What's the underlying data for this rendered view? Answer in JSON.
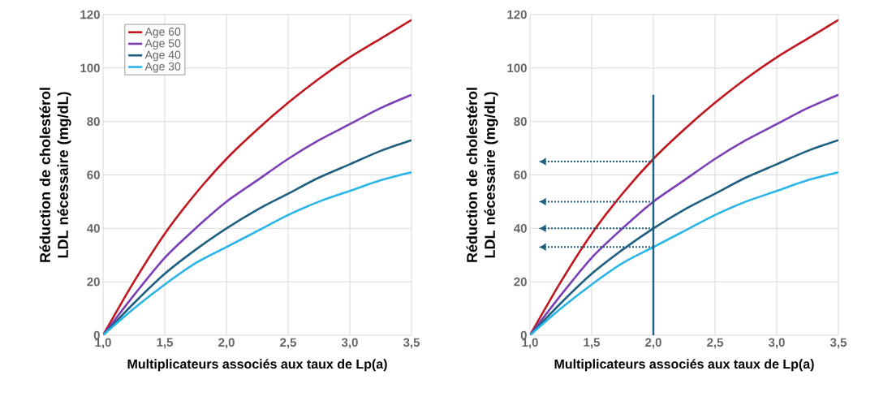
{
  "chart_data": [
    {
      "type": "line",
      "xlabel": "Multiplicateurs associés aux taux de Lp(a)",
      "ylabel": "Réduction de cholestérol LDL nécessaire (mg/dL)",
      "x": [
        1.0,
        1.25,
        1.5,
        1.75,
        2.0,
        2.25,
        2.5,
        2.75,
        3.0,
        3.25,
        3.5
      ],
      "series": [
        {
          "name": "Age 60",
          "color": "#c0161e",
          "values": [
            0,
            20,
            38,
            53,
            66,
            77,
            87,
            96,
            104,
            111,
            118
          ]
        },
        {
          "name": "Age 50",
          "color": "#7b3fb5",
          "values": [
            0,
            15,
            29,
            40,
            50,
            58,
            66,
            73,
            79,
            85,
            90
          ]
        },
        {
          "name": "Age 40",
          "color": "#1f5f7f",
          "values": [
            0,
            12,
            23,
            32,
            40,
            47,
            53,
            59,
            64,
            69,
            73
          ]
        },
        {
          "name": "Age 30",
          "color": "#29b5e8",
          "values": [
            0,
            10,
            19,
            27,
            33,
            39,
            45,
            50,
            54,
            58,
            61
          ]
        }
      ],
      "xlim": [
        1.0,
        3.5
      ],
      "ylim": [
        0,
        120
      ],
      "xticks": [
        {
          "value": 1.0,
          "label": "1,0"
        },
        {
          "value": 1.5,
          "label": "1,5"
        },
        {
          "value": 2.0,
          "label": "2,0"
        },
        {
          "value": 2.5,
          "label": "2,5"
        },
        {
          "value": 3.0,
          "label": "3,0"
        },
        {
          "value": 3.5,
          "label": "3,5"
        }
      ],
      "yticks": [
        0,
        20,
        40,
        60,
        80,
        100,
        120
      ],
      "grid": true,
      "legend": "top left",
      "line_style": "solid"
    },
    {
      "type": "line",
      "xlabel": "Multiplicateurs associés aux taux de Lp(a)",
      "ylabel": "Réduction de cholestérol LDL nécessaire (mg/dL)",
      "x": [
        1.0,
        1.25,
        1.5,
        1.75,
        2.0,
        2.25,
        2.5,
        2.75,
        3.0,
        3.25,
        3.5
      ],
      "series": [
        {
          "color": "#c0161e",
          "values": [
            0,
            20,
            38,
            53,
            66,
            77,
            87,
            96,
            104,
            111,
            118
          ]
        },
        {
          "color": "#7b3fb5",
          "values": [
            0,
            15,
            29,
            40,
            50,
            58,
            66,
            73,
            79,
            85,
            90
          ]
        },
        {
          "color": "#1f5f7f",
          "values": [
            0,
            12,
            23,
            32,
            40,
            47,
            53,
            59,
            64,
            69,
            73
          ]
        },
        {
          "color": "#29b5e8",
          "values": [
            0,
            10,
            19,
            27,
            33,
            39,
            45,
            50,
            54,
            58,
            61
          ]
        }
      ],
      "xlim": [
        1.0,
        3.5
      ],
      "ylim": [
        0,
        120
      ],
      "xticks": [
        {
          "value": 1.0,
          "label": "1,0"
        },
        {
          "value": 1.5,
          "label": "1,5"
        },
        {
          "value": 2.0,
          "label": "2,0"
        },
        {
          "value": 2.5,
          "label": "2,5"
        },
        {
          "value": 3.0,
          "label": "3,0"
        },
        {
          "value": 3.5,
          "label": "3,5"
        }
      ],
      "yticks": [
        0,
        20,
        40,
        60,
        80,
        100,
        120
      ],
      "grid": true,
      "line_style": "solid",
      "ref_lines": [
        {
          "axis": "x",
          "value": 2.0,
          "color": "#1f5f7f",
          "line_style": "solid"
        },
        {
          "axis": "y",
          "value": 65,
          "color": "#1f5f7f",
          "line_style": "dotted"
        },
        {
          "axis": "y",
          "value": 50,
          "color": "#1f5f7f",
          "line_style": "dotted"
        },
        {
          "axis": "y",
          "value": 40,
          "color": "#1f5f7f",
          "line_style": "dotted"
        },
        {
          "axis": "y",
          "value": 33,
          "color": "#1f5f7f",
          "line_style": "dotted"
        }
      ]
    }
  ]
}
